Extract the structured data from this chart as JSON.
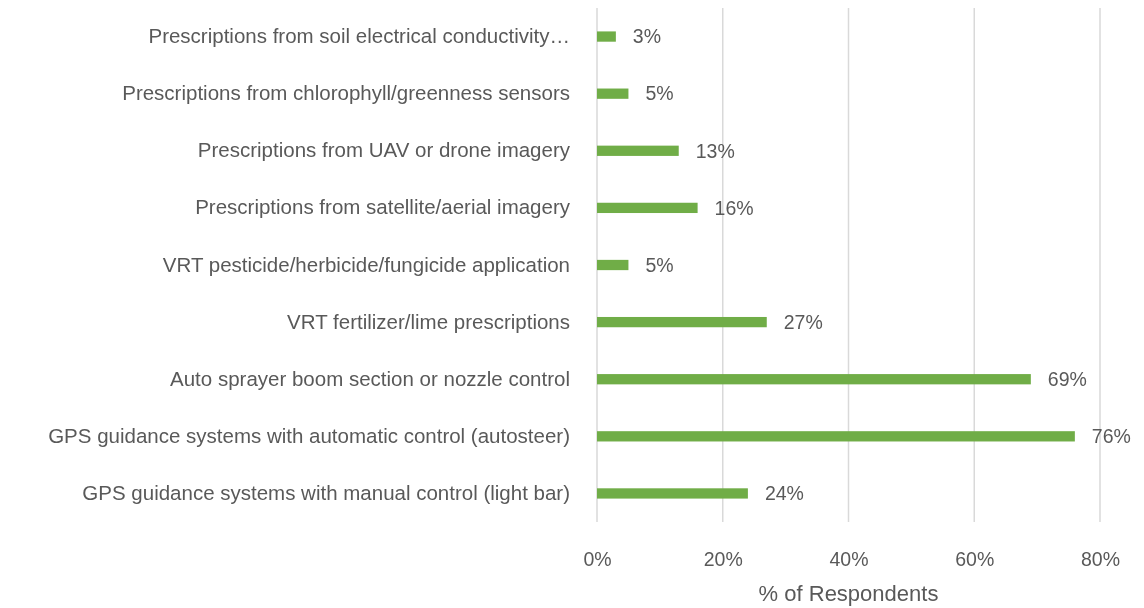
{
  "chart_data": {
    "type": "bar",
    "orientation": "horizontal",
    "categories": [
      "Prescriptions from soil electrical conductivity…",
      "Prescriptions from chlorophyll/greenness sensors",
      "Prescriptions from UAV or drone imagery",
      "Prescriptions from satellite/aerial imagery",
      "VRT pesticide/herbicide/fungicide application",
      "VRT fertilizer/lime prescriptions",
      "Auto sprayer boom section or nozzle control",
      "GPS guidance systems with automatic control (autosteer)",
      "GPS guidance systems with manual control (light bar)"
    ],
    "values": [
      3,
      5,
      13,
      16,
      5,
      27,
      69,
      76,
      24
    ],
    "value_labels": [
      "3%",
      "5%",
      "13%",
      "16%",
      "5%",
      "27%",
      "69%",
      "76%",
      "24%"
    ],
    "color": "#70ad47",
    "xlabel": "% of Respondents",
    "xlim": [
      0,
      80
    ],
    "xticks": [
      {
        "value": 0,
        "label": "0%"
      },
      {
        "value": 20,
        "label": "20%"
      },
      {
        "value": 40,
        "label": "40%"
      },
      {
        "value": 60,
        "label": "60%"
      },
      {
        "value": 80,
        "label": "80%"
      }
    ],
    "grid": "x"
  }
}
